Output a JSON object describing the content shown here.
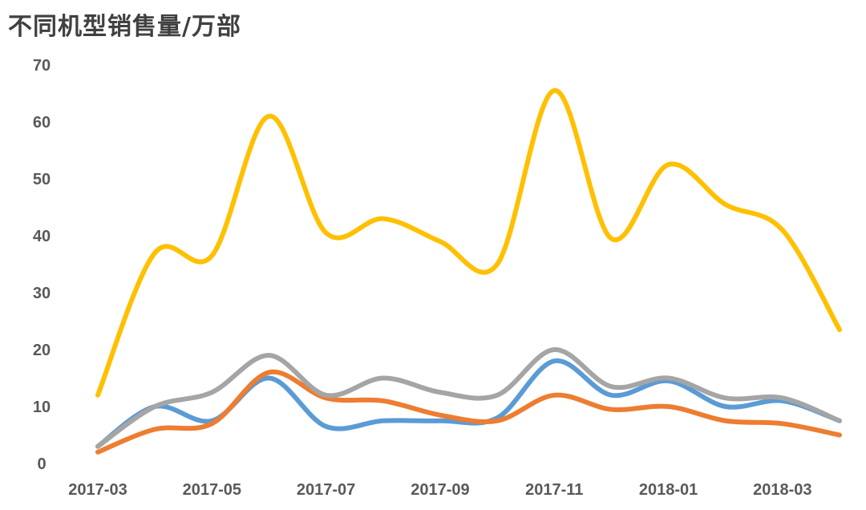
{
  "chart_data": {
    "type": "line",
    "title": "不同机型销售量/万部",
    "xlabel": "",
    "ylabel": "",
    "ylim": [
      0,
      70
    ],
    "yticks": [
      0,
      10,
      20,
      30,
      40,
      50,
      60,
      70
    ],
    "x": [
      "2017-03",
      "2017-04",
      "2017-05",
      "2017-06",
      "2017-07",
      "2017-08",
      "2017-09",
      "2017-10",
      "2017-11",
      "2017-12",
      "2018-01",
      "2018-02",
      "2018-03",
      "2018-04"
    ],
    "x_tick_labels": [
      "2017-03",
      "2017-05",
      "2017-07",
      "2017-09",
      "2017-11",
      "2018-01",
      "2018-03"
    ],
    "grid": false,
    "legend": "none",
    "smooth": true,
    "series": [
      {
        "color": "#FFC000",
        "values": [
          12,
          37,
          36.5,
          61,
          40.5,
          43,
          39,
          35,
          65.5,
          39.5,
          52.5,
          45.5,
          41,
          23.5
        ]
      },
      {
        "color": "#5B9BD5",
        "values": [
          3,
          10,
          7.5,
          15,
          6.5,
          7.5,
          7.5,
          8,
          18,
          12,
          14.5,
          10,
          11,
          7.5
        ]
      },
      {
        "color": "#ED7D31",
        "values": [
          2,
          6,
          7,
          16,
          11.5,
          11,
          8.5,
          7.5,
          12,
          9.5,
          10,
          7.5,
          7,
          5
        ]
      },
      {
        "color": "#A5A5A5",
        "values": [
          3,
          10,
          12.5,
          19,
          12,
          15,
          12.5,
          12,
          20,
          13.5,
          15,
          11.5,
          11.5,
          7.5
        ]
      }
    ]
  }
}
